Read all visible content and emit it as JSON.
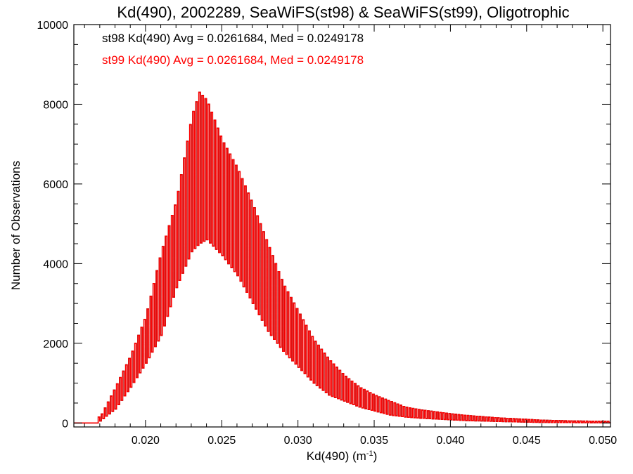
{
  "chart_data": {
    "type": "histogram",
    "title": "Kd(490), 2002289, SeaWiFS(st98) & SeaWiFS(st99), Oligotrophic",
    "xlabel": "Kd(490) (m",
    "xlabel_sup": "-1",
    "xlabel_close": ")",
    "ylabel": "Number of Observations",
    "xlim": [
      0.0153,
      0.0505
    ],
    "ylim": [
      -100,
      10000
    ],
    "x_ticks": [
      {
        "value": 0.02,
        "label": "0.020"
      },
      {
        "value": 0.025,
        "label": "0.025"
      },
      {
        "value": 0.03,
        "label": "0.030"
      },
      {
        "value": 0.035,
        "label": "0.035"
      },
      {
        "value": 0.04,
        "label": "0.040"
      },
      {
        "value": 0.045,
        "label": "0.045"
      },
      {
        "value": 0.05,
        "label": "0.050"
      }
    ],
    "y_ticks": [
      {
        "value": 0,
        "label": "0"
      },
      {
        "value": 2000,
        "label": "2000"
      },
      {
        "value": 4000,
        "label": "4000"
      },
      {
        "value": 6000,
        "label": "6000"
      },
      {
        "value": 8000,
        "label": "8000"
      },
      {
        "value": 10000,
        "label": "10000"
      }
    ],
    "annotations": [
      {
        "text": "st98 Kd(490) Avg = 0.0261684, Med = 0.0249178",
        "color": "#000000"
      },
      {
        "text": "st99 Kd(490) Avg = 0.0261684, Med = 0.0249178",
        "color": "#ff0000"
      }
    ],
    "series": [
      {
        "name": "st98",
        "color": "#000000",
        "bin_width": 0.0001,
        "x_start": 0.0153,
        "counts_hi_lo": [
          [
            0.017,
            150,
            50
          ],
          [
            0.018,
            900,
            350
          ],
          [
            0.019,
            1700,
            900
          ],
          [
            0.02,
            2700,
            1500
          ],
          [
            0.021,
            4300,
            2200
          ],
          [
            0.022,
            5600,
            3400
          ],
          [
            0.023,
            7700,
            4300
          ],
          [
            0.0235,
            8300,
            4500
          ],
          [
            0.024,
            8100,
            4600
          ],
          [
            0.025,
            7100,
            4200
          ],
          [
            0.026,
            6400,
            3700
          ],
          [
            0.027,
            5500,
            3000
          ],
          [
            0.028,
            4500,
            2300
          ],
          [
            0.029,
            3500,
            1800
          ],
          [
            0.03,
            2800,
            1400
          ],
          [
            0.031,
            2100,
            1000
          ],
          [
            0.032,
            1600,
            700
          ],
          [
            0.033,
            1200,
            550
          ],
          [
            0.034,
            900,
            400
          ],
          [
            0.035,
            700,
            300
          ],
          [
            0.036,
            550,
            200
          ],
          [
            0.037,
            400,
            150
          ],
          [
            0.038,
            330,
            120
          ],
          [
            0.039,
            280,
            100
          ],
          [
            0.04,
            230,
            80
          ],
          [
            0.041,
            190,
            60
          ],
          [
            0.042,
            160,
            50
          ],
          [
            0.043,
            130,
            40
          ],
          [
            0.044,
            110,
            30
          ],
          [
            0.045,
            90,
            20
          ],
          [
            0.046,
            70,
            15
          ],
          [
            0.048,
            50,
            10
          ],
          [
            0.0505,
            40,
            5
          ]
        ]
      },
      {
        "name": "st99",
        "color": "#ff0000",
        "bin_width": 0.0001,
        "x_start": 0.0153,
        "counts_hi_lo": [
          [
            0.017,
            150,
            50
          ],
          [
            0.018,
            900,
            350
          ],
          [
            0.019,
            1700,
            900
          ],
          [
            0.02,
            2700,
            1500
          ],
          [
            0.021,
            4300,
            2200
          ],
          [
            0.022,
            5600,
            3400
          ],
          [
            0.023,
            7700,
            4300
          ],
          [
            0.0235,
            8300,
            4500
          ],
          [
            0.024,
            8100,
            4600
          ],
          [
            0.025,
            7100,
            4200
          ],
          [
            0.026,
            6400,
            3700
          ],
          [
            0.027,
            5500,
            3000
          ],
          [
            0.028,
            4500,
            2300
          ],
          [
            0.029,
            3500,
            1800
          ],
          [
            0.03,
            2800,
            1400
          ],
          [
            0.031,
            2100,
            1000
          ],
          [
            0.032,
            1600,
            700
          ],
          [
            0.033,
            1200,
            550
          ],
          [
            0.034,
            900,
            400
          ],
          [
            0.035,
            700,
            300
          ],
          [
            0.036,
            550,
            200
          ],
          [
            0.037,
            400,
            150
          ],
          [
            0.038,
            330,
            120
          ],
          [
            0.039,
            280,
            100
          ],
          [
            0.04,
            230,
            80
          ],
          [
            0.041,
            190,
            60
          ],
          [
            0.042,
            160,
            50
          ],
          [
            0.043,
            130,
            40
          ],
          [
            0.044,
            110,
            30
          ],
          [
            0.045,
            90,
            20
          ],
          [
            0.046,
            70,
            15
          ],
          [
            0.048,
            50,
            10
          ],
          [
            0.0505,
            40,
            5
          ]
        ]
      }
    ]
  }
}
